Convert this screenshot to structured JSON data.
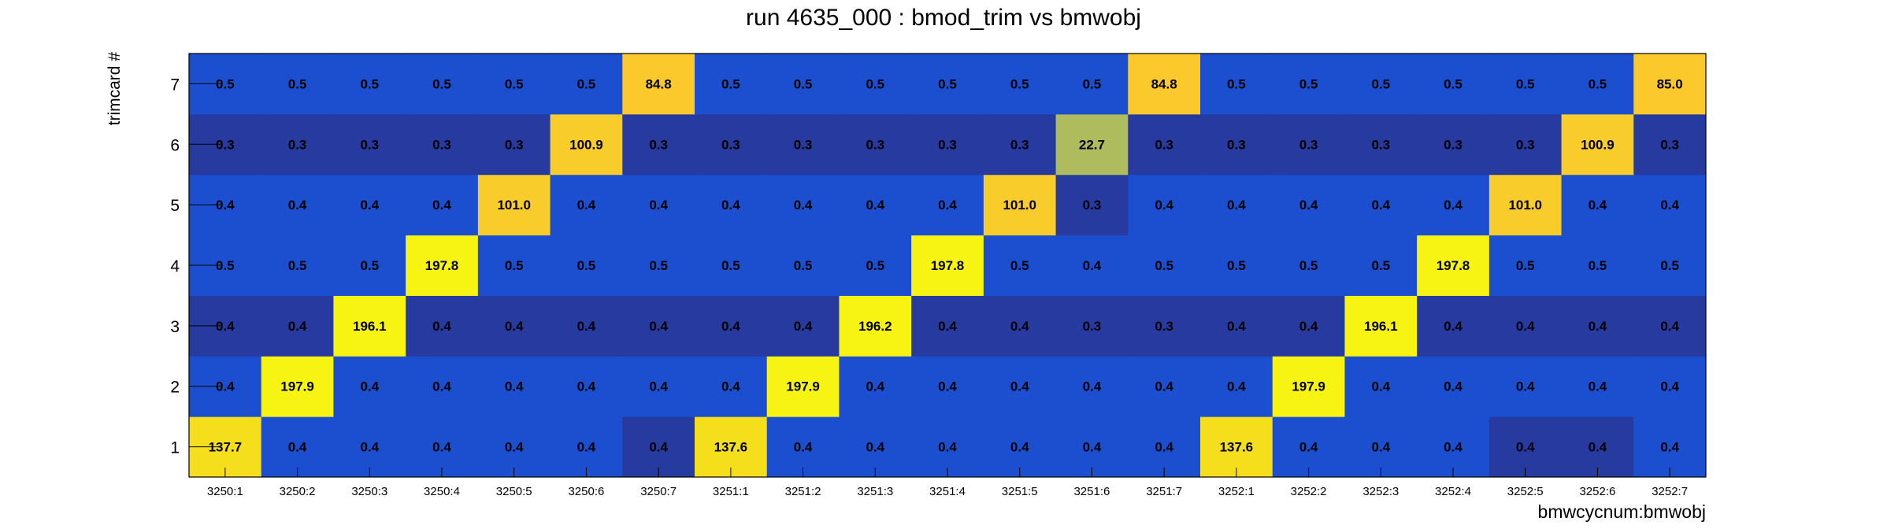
{
  "chart_data": {
    "type": "heatmap",
    "title": "run 4635_000 : bmod_trim vs bmwobj",
    "xlabel": "bmwcycnum:bmwobj",
    "ylabel": "trimcard #",
    "x_categories": [
      "3250:1",
      "3250:2",
      "3250:3",
      "3250:4",
      "3250:5",
      "3250:6",
      "3250:7",
      "3251:1",
      "3251:2",
      "3251:3",
      "3251:4",
      "3251:5",
      "3251:6",
      "3251:7",
      "3252:1",
      "3252:2",
      "3252:3",
      "3252:4",
      "3252:5",
      "3252:6",
      "3252:7"
    ],
    "y_categories": [
      "1",
      "2",
      "3",
      "4",
      "5",
      "6",
      "7"
    ],
    "values": [
      [
        137.7,
        0.4,
        0.4,
        0.4,
        0.4,
        0.4,
        0.4,
        137.6,
        0.4,
        0.4,
        0.4,
        0.4,
        0.4,
        0.4,
        137.6,
        0.4,
        0.4,
        0.4,
        0.4,
        0.4,
        0.4
      ],
      [
        0.4,
        197.9,
        0.4,
        0.4,
        0.4,
        0.4,
        0.4,
        0.4,
        197.9,
        0.4,
        0.4,
        0.4,
        0.4,
        0.4,
        0.4,
        197.9,
        0.4,
        0.4,
        0.4,
        0.4,
        0.4
      ],
      [
        0.4,
        0.4,
        196.1,
        0.4,
        0.4,
        0.4,
        0.4,
        0.4,
        0.4,
        196.2,
        0.4,
        0.4,
        0.3,
        0.3,
        0.4,
        0.4,
        196.1,
        0.4,
        0.4,
        0.4,
        0.4
      ],
      [
        0.5,
        0.5,
        0.5,
        197.8,
        0.5,
        0.5,
        0.5,
        0.5,
        0.5,
        0.5,
        197.8,
        0.5,
        0.4,
        0.5,
        0.5,
        0.5,
        0.5,
        197.8,
        0.5,
        0.5,
        0.5
      ],
      [
        0.4,
        0.4,
        0.4,
        0.4,
        101.0,
        0.4,
        0.4,
        0.4,
        0.4,
        0.4,
        0.4,
        101.0,
        0.3,
        0.4,
        0.4,
        0.4,
        0.4,
        0.4,
        101.0,
        0.4,
        0.4
      ],
      [
        0.3,
        0.3,
        0.3,
        0.3,
        0.3,
        100.9,
        0.3,
        0.3,
        0.3,
        0.3,
        0.3,
        0.3,
        22.7,
        0.3,
        0.3,
        0.3,
        0.3,
        0.3,
        0.3,
        100.9,
        0.3
      ],
      [
        0.5,
        0.5,
        0.5,
        0.5,
        0.5,
        0.5,
        84.8,
        0.5,
        0.5,
        0.5,
        0.5,
        0.5,
        0.5,
        84.8,
        0.5,
        0.5,
        0.5,
        0.5,
        0.5,
        0.5,
        85.0
      ]
    ],
    "cell_colors": [
      [
        "#f5de1c",
        "#1b4fcf",
        "#1b4fcf",
        "#1b4fcf",
        "#1b4fcf",
        "#1b4fcf",
        "#263a9f",
        "#f5de1c",
        "#1b4fcf",
        "#1b4fcf",
        "#1b4fcf",
        "#1b4fcf",
        "#1b4fcf",
        "#1b4fcf",
        "#f5de1c",
        "#1b4fcf",
        "#1b4fcf",
        "#1b4fcf",
        "#263a9f",
        "#263a9f",
        "#1b4fcf"
      ],
      [
        "#1b4fcf",
        "#f7f414",
        "#1b4fcf",
        "#1b4fcf",
        "#1b4fcf",
        "#1b4fcf",
        "#1b4fcf",
        "#1b4fcf",
        "#f7f414",
        "#1b4fcf",
        "#1b4fcf",
        "#1b4fcf",
        "#1b4fcf",
        "#1b4fcf",
        "#1b4fcf",
        "#f7f414",
        "#1b4fcf",
        "#1b4fcf",
        "#1b4fcf",
        "#1b4fcf",
        "#1b4fcf"
      ],
      [
        "#263a9f",
        "#263a9f",
        "#f7f414",
        "#263a9f",
        "#263a9f",
        "#263a9f",
        "#263a9f",
        "#263a9f",
        "#263a9f",
        "#f7f414",
        "#263a9f",
        "#263a9f",
        "#263a9f",
        "#263a9f",
        "#263a9f",
        "#263a9f",
        "#f7f414",
        "#263a9f",
        "#263a9f",
        "#263a9f",
        "#263a9f"
      ],
      [
        "#1b4fcf",
        "#1b4fcf",
        "#1b4fcf",
        "#f7f414",
        "#1b4fcf",
        "#1b4fcf",
        "#1b4fcf",
        "#1b4fcf",
        "#1b4fcf",
        "#1b4fcf",
        "#f7f414",
        "#1b4fcf",
        "#1b4fcf",
        "#1b4fcf",
        "#1b4fcf",
        "#1b4fcf",
        "#1b4fcf",
        "#f7f414",
        "#1b4fcf",
        "#1b4fcf",
        "#1b4fcf"
      ],
      [
        "#1b4fcf",
        "#1b4fcf",
        "#1b4fcf",
        "#1b4fcf",
        "#f8cc2a",
        "#1b4fcf",
        "#1b4fcf",
        "#1b4fcf",
        "#1b4fcf",
        "#1b4fcf",
        "#1b4fcf",
        "#f8cc2a",
        "#263a9f",
        "#1b4fcf",
        "#1b4fcf",
        "#1b4fcf",
        "#1b4fcf",
        "#1b4fcf",
        "#f8cc2a",
        "#1b4fcf",
        "#1b4fcf"
      ],
      [
        "#263a9f",
        "#263a9f",
        "#263a9f",
        "#263a9f",
        "#263a9f",
        "#f8cc2a",
        "#263a9f",
        "#263a9f",
        "#263a9f",
        "#263a9f",
        "#263a9f",
        "#263a9f",
        "#aebc5e",
        "#263a9f",
        "#263a9f",
        "#263a9f",
        "#263a9f",
        "#263a9f",
        "#263a9f",
        "#f8cc2a",
        "#263a9f"
      ],
      [
        "#1b4fcf",
        "#1b4fcf",
        "#1b4fcf",
        "#1b4fcf",
        "#1b4fcf",
        "#1b4fcf",
        "#fbc92c",
        "#1b4fcf",
        "#1b4fcf",
        "#1b4fcf",
        "#1b4fcf",
        "#1b4fcf",
        "#1b4fcf",
        "#fbc92c",
        "#1b4fcf",
        "#1b4fcf",
        "#1b4fcf",
        "#1b4fcf",
        "#1b4fcf",
        "#1b4fcf",
        "#fbc92c"
      ]
    ],
    "grid": false,
    "legend": "none"
  }
}
